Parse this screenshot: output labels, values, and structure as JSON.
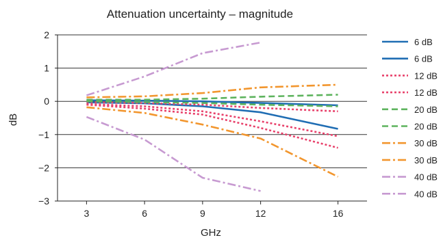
{
  "chart_data": {
    "type": "line",
    "title": "Attenuation uncertainty – magnitude",
    "xlabel": "GHz",
    "ylabel": "dB",
    "x_categories": [
      "3",
      "6",
      "9",
      "12",
      "16"
    ],
    "x": [
      3,
      6,
      9,
      12,
      16
    ],
    "xlim": [
      1.5,
      17.5
    ],
    "ylim": [
      -3,
      2
    ],
    "y_ticks": [
      "2",
      "1",
      "0",
      "−1",
      "−2",
      "−3"
    ],
    "y_tick_values": [
      2,
      1,
      0,
      -1,
      -2,
      -3
    ],
    "grid": "horizontal",
    "legend_position": "right",
    "series": [
      {
        "name": "6 dB",
        "color": "#1f6db3",
        "dash": "solid",
        "x": [
          3,
          6,
          9,
          12,
          16
        ],
        "values": [
          0.03,
          0.02,
          0.0,
          -0.05,
          -0.12
        ]
      },
      {
        "name": "6 dB",
        "color": "#1f6db3",
        "dash": "solid",
        "x": [
          3,
          6,
          9,
          12,
          16
        ],
        "values": [
          -0.03,
          -0.06,
          -0.15,
          -0.33,
          -0.83
        ]
      },
      {
        "name": "12 dB",
        "color": "#e8416b",
        "dash": "dotted",
        "x": [
          3,
          6,
          9,
          12,
          16
        ],
        "values": [
          -0.02,
          -0.05,
          -0.1,
          -0.2,
          -0.3
        ]
      },
      {
        "name": "12 dB",
        "color": "#e8416b",
        "dash": "dotted",
        "x": [
          3,
          6,
          9,
          12,
          16
        ],
        "values": [
          -0.08,
          -0.15,
          -0.3,
          -0.6,
          -1.05
        ]
      },
      {
        "name": "12 dB",
        "color": "#e8416b",
        "dash": "dotted",
        "x": [
          3,
          6,
          9,
          12,
          16
        ],
        "values": [
          -0.1,
          -0.22,
          -0.4,
          -0.8,
          -1.4
        ]
      },
      {
        "name": "20 dB",
        "color": "#5db35d",
        "dash": "dashed",
        "x": [
          3,
          6,
          9,
          12,
          16
        ],
        "values": [
          0.05,
          0.05,
          0.08,
          0.14,
          0.2
        ]
      },
      {
        "name": "20 dB",
        "color": "#5db35d",
        "dash": "dashed",
        "x": [
          3,
          6,
          9,
          12,
          16
        ],
        "values": [
          0.0,
          -0.02,
          -0.05,
          -0.1,
          -0.15
        ]
      },
      {
        "name": "30 dB",
        "color": "#f2962e",
        "dash": "dashdot",
        "x": [
          3,
          6,
          9,
          12,
          16
        ],
        "values": [
          0.12,
          0.15,
          0.25,
          0.42,
          0.5
        ]
      },
      {
        "name": "30 dB",
        "color": "#f2962e",
        "dash": "dashdot",
        "x": [
          3,
          6,
          9,
          12,
          16
        ],
        "values": [
          -0.18,
          -0.35,
          -0.7,
          -1.12,
          -2.27
        ]
      },
      {
        "name": "40 dB",
        "color": "#c79ad1",
        "dash": "dashdot",
        "x": [
          3,
          6,
          9,
          12
        ],
        "values": [
          0.18,
          0.75,
          1.45,
          1.77
        ]
      },
      {
        "name": "40 dB",
        "color": "#c79ad1",
        "dash": "dashdot",
        "x": [
          3,
          6,
          9,
          12
        ],
        "values": [
          -0.47,
          -1.15,
          -2.3,
          -2.7
        ]
      }
    ],
    "legend": [
      {
        "label": "6 dB",
        "color": "#1f6db3",
        "dash": "solid"
      },
      {
        "label": "6 dB",
        "color": "#1f6db3",
        "dash": "solid"
      },
      {
        "label": "12 dB",
        "color": "#e8416b",
        "dash": "dotted"
      },
      {
        "label": "12 dB",
        "color": "#e8416b",
        "dash": "dotted"
      },
      {
        "label": "20 dB",
        "color": "#5db35d",
        "dash": "dashed"
      },
      {
        "label": "20 dB",
        "color": "#5db35d",
        "dash": "dashed"
      },
      {
        "label": "30 dB",
        "color": "#f2962e",
        "dash": "dashdot"
      },
      {
        "label": "30 dB",
        "color": "#f2962e",
        "dash": "dashdot"
      },
      {
        "label": "40 dB",
        "color": "#c79ad1",
        "dash": "dashdot"
      },
      {
        "label": "40 dB",
        "color": "#c79ad1",
        "dash": "dashdot"
      }
    ]
  }
}
